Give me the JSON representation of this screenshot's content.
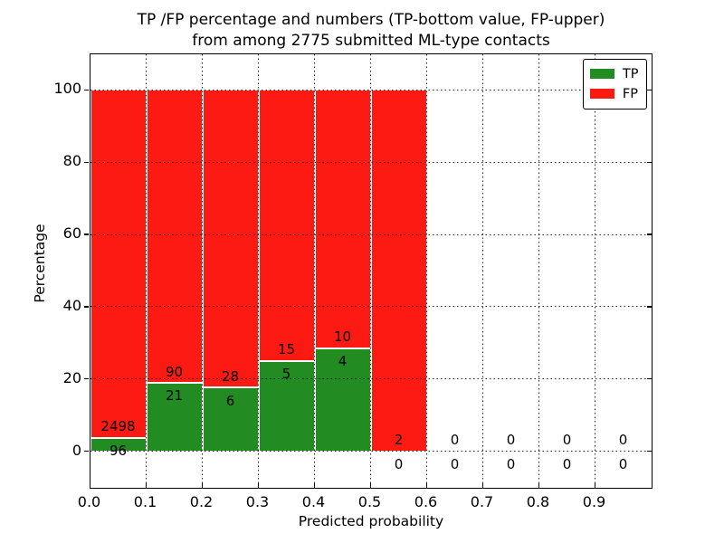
{
  "title": {
    "line1": "TP /FP percentage and numbers (TP-bottom value, FP-upper)",
    "line2": "from among 2775 submitted ML-type contacts"
  },
  "chart_data": {
    "type": "bar",
    "stacked": true,
    "title": "TP /FP percentage and numbers (TP-bottom value, FP-upper) from among 2775 submitted ML-type contacts",
    "xlabel": "Predicted probability",
    "ylabel": "Percentage",
    "total_contacts": 2775,
    "xlim": [
      0.0,
      1.0
    ],
    "ylim": [
      -10,
      110
    ],
    "yticks": [
      0,
      20,
      40,
      60,
      80,
      100
    ],
    "xtick_labels": [
      "0.0",
      "0.1",
      "0.2",
      "0.3",
      "0.4",
      "0.5",
      "0.6",
      "0.7",
      "0.8",
      "0.9"
    ],
    "grid": "dotted",
    "bin_width": 0.1,
    "bin_starts": [
      0.0,
      0.1,
      0.2,
      0.3,
      0.4,
      0.5,
      0.6,
      0.7,
      0.8,
      0.9
    ],
    "bars_unit": "percent of bin total (TP+FP stacked to 100)",
    "series": [
      {
        "name": "TP",
        "color": "#228b22",
        "counts": [
          96,
          21,
          6,
          5,
          4,
          0,
          0,
          0,
          0,
          0
        ]
      },
      {
        "name": "FP",
        "color": "#fc1a12",
        "counts": [
          2498,
          90,
          28,
          15,
          10,
          2,
          0,
          0,
          0,
          0
        ]
      }
    ],
    "tp_percent_per_bin": [
      3.7,
      18.92,
      17.65,
      25.0,
      28.57,
      0,
      0,
      0,
      0,
      0
    ],
    "legend": {
      "position": "upper right",
      "entries": [
        {
          "label": "TP",
          "color": "#228b22"
        },
        {
          "label": "FP",
          "color": "#fc1a12"
        }
      ]
    }
  }
}
